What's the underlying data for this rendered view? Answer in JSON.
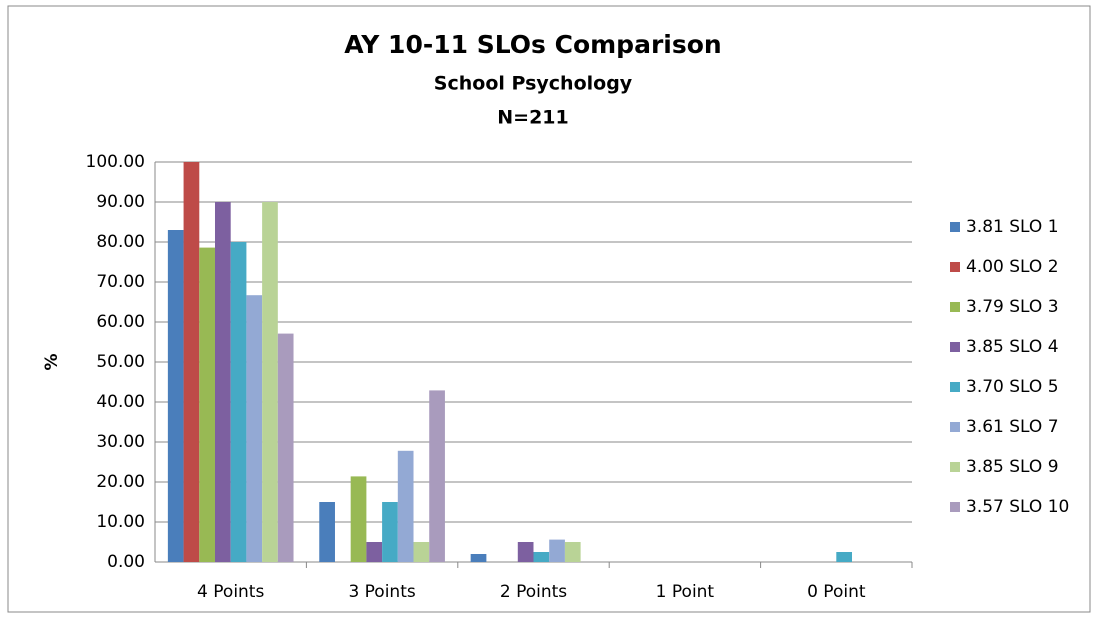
{
  "chart_data": {
    "type": "bar",
    "title": "AY 10-11 SLOs Comparison",
    "subtitle": "School Psychology",
    "note": "N=211",
    "y_label": "%",
    "categories": [
      "4 Points",
      "3 Points",
      "2 Points",
      "1 Point",
      "0 Point"
    ],
    "series": [
      {
        "name": "3.81 SLO 1",
        "color": "#4a7ebb",
        "values": [
          83,
          15,
          2,
          0,
          0
        ]
      },
      {
        "name": "4.00 SLO 2",
        "color": "#be4b48",
        "values": [
          100,
          0,
          0,
          0,
          0
        ]
      },
      {
        "name": "3.79 SLO 3",
        "color": "#98b954",
        "values": [
          78.6,
          21.4,
          0,
          0,
          0
        ]
      },
      {
        "name": "3.85 SLO 4",
        "color": "#7d60a0",
        "values": [
          90,
          5,
          5,
          0,
          0
        ]
      },
      {
        "name": "3.70 SLO 5",
        "color": "#46aac5",
        "values": [
          80,
          15,
          2.5,
          0,
          2.5
        ]
      },
      {
        "name": "3.61 SLO 7",
        "color": "#93a9d4",
        "values": [
          66.7,
          27.8,
          5.6,
          0,
          0
        ]
      },
      {
        "name": "3.85 SLO 9",
        "color": "#b9d396",
        "values": [
          90,
          5,
          5,
          0,
          0
        ]
      },
      {
        "name": "3.57 SLO 10",
        "color": "#a99bbd",
        "values": [
          57.1,
          42.9,
          0,
          0,
          0
        ]
      }
    ],
    "ylim": [
      0,
      100
    ],
    "yticks": [
      {
        "value": 0,
        "label": "0.00"
      },
      {
        "value": 10,
        "label": "10.00"
      },
      {
        "value": 20,
        "label": "20.00"
      },
      {
        "value": 30,
        "label": "30.00"
      },
      {
        "value": 40,
        "label": "40.00"
      },
      {
        "value": 50,
        "label": "50.00"
      },
      {
        "value": 60,
        "label": "60.00"
      },
      {
        "value": 70,
        "label": "70.00"
      },
      {
        "value": 80,
        "label": "80.00"
      },
      {
        "value": 90,
        "label": "90.00"
      },
      {
        "value": 100,
        "label": "100.00"
      }
    ],
    "grid": true,
    "legend": "right"
  }
}
